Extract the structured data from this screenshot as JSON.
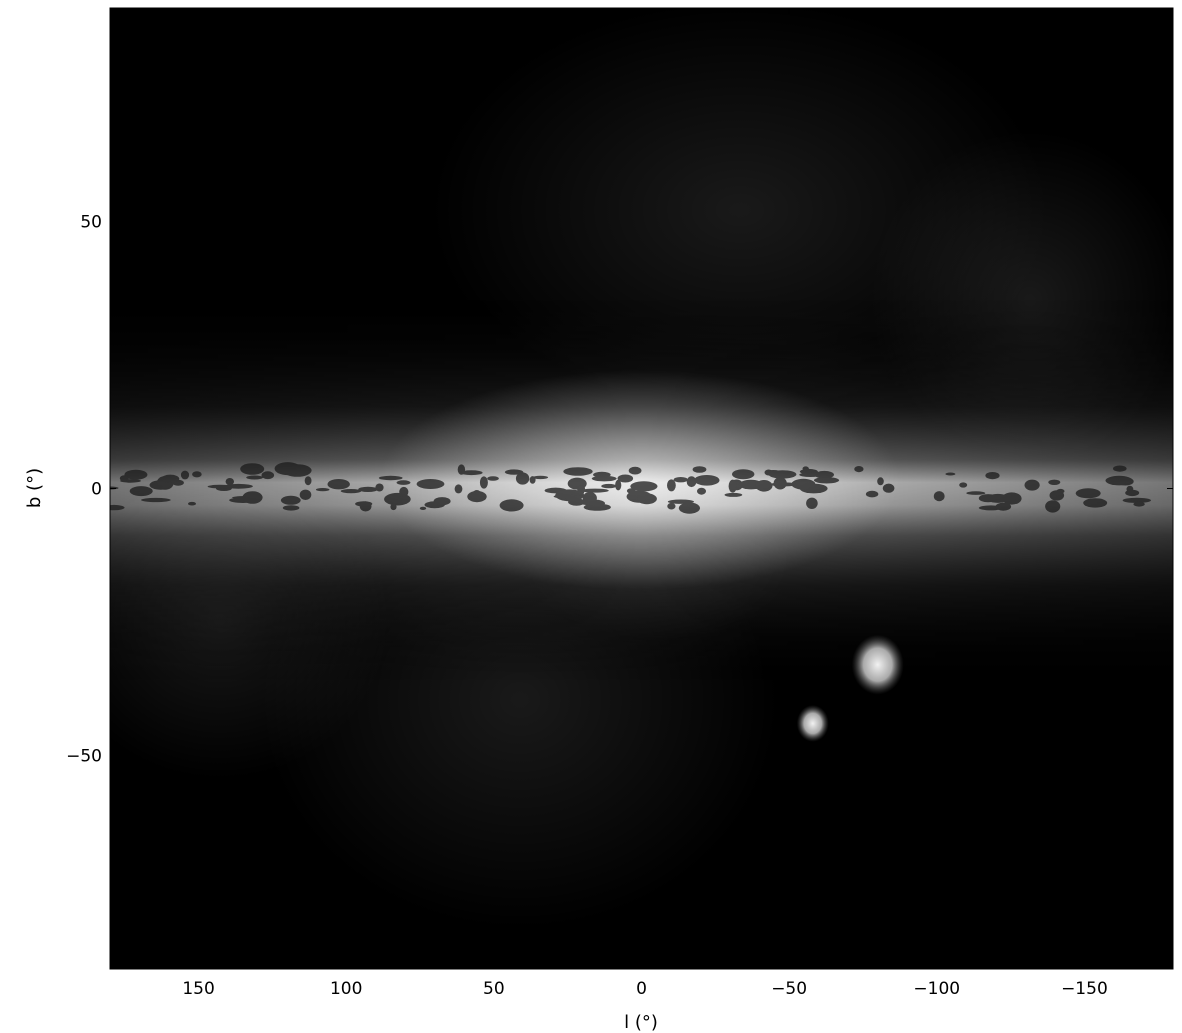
{
  "chart_data": {
    "type": "heatmap",
    "title": "",
    "xlabel": "l (°)",
    "ylabel": "b (°)",
    "xlim": [
      180,
      -180
    ],
    "ylim": [
      -90,
      90
    ],
    "x_ticks": [
      150,
      100,
      50,
      0,
      -50,
      -100,
      -150
    ],
    "x_tick_labels": [
      "150",
      "100",
      "50",
      "0",
      "−50",
      "−100",
      "−150"
    ],
    "y_ticks": [
      50,
      0,
      -50
    ],
    "y_tick_labels": [
      "50",
      "0",
      "−50"
    ],
    "colormap": "gray",
    "grid": false,
    "legend": false,
    "background_color": "#000000",
    "features": [
      {
        "kind": "galactic-plane",
        "l": 0,
        "b": 0
      },
      {
        "kind": "bright-blob",
        "l": -80,
        "b": -33
      },
      {
        "kind": "bright-blob",
        "l": -58,
        "b": -44
      }
    ]
  }
}
